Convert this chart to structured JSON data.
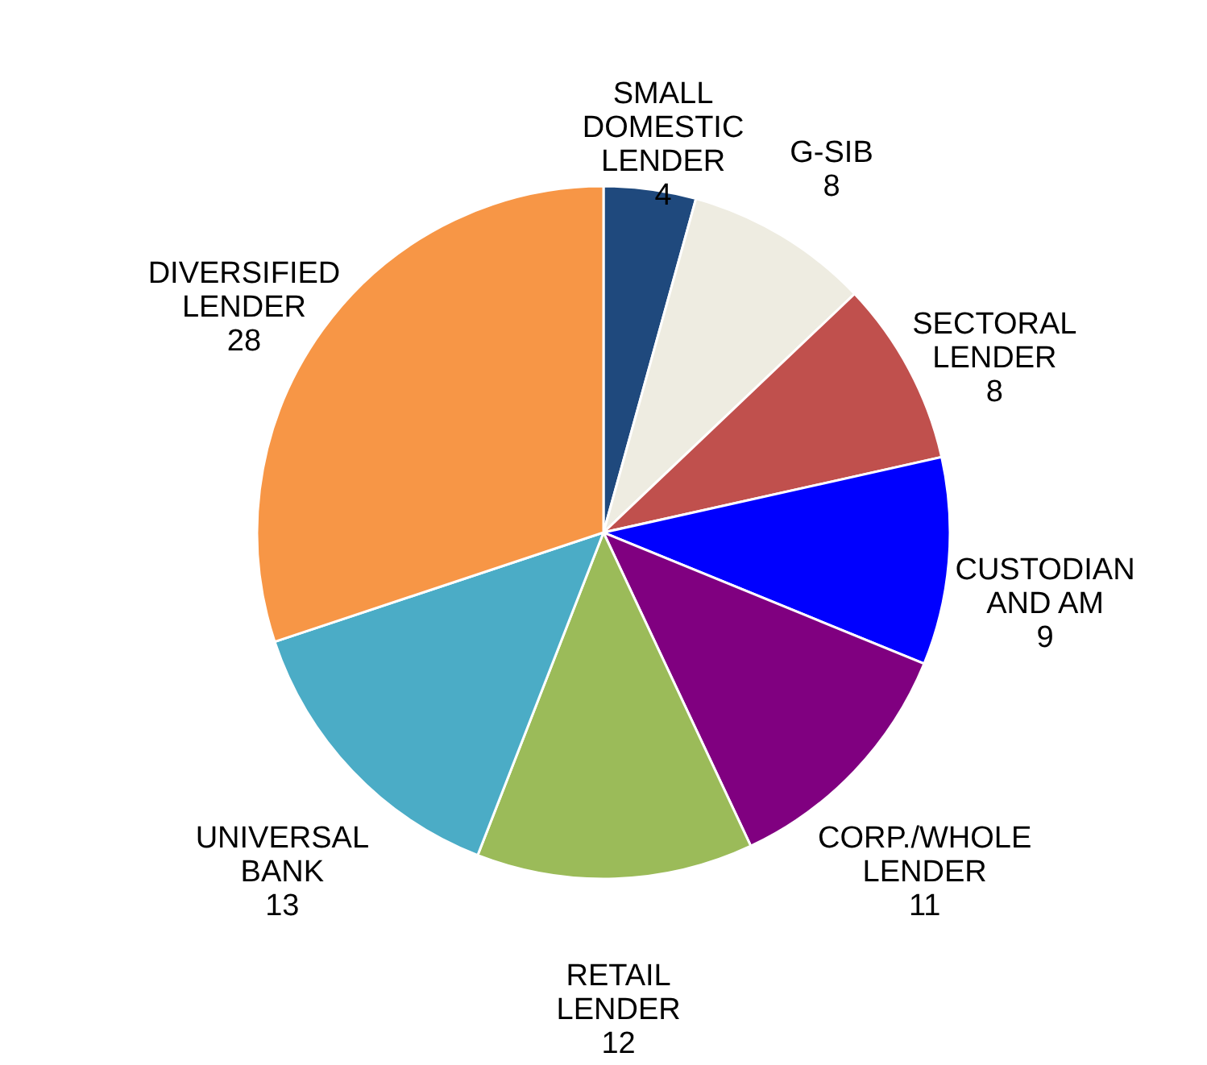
{
  "chart_data": {
    "type": "pie",
    "categories": [
      "SMALL\nDOMESTIC\nLENDER",
      "G-SIB",
      "SECTORAL\nLENDER",
      "CUSTODIAN\nAND AM",
      "CORP./WHOLE\nLENDER",
      "RETAIL\nLENDER",
      "UNIVERSAL\nBANK",
      "DIVERSIFIED\nLENDER"
    ],
    "values": [
      4,
      8,
      8,
      9,
      11,
      12,
      13,
      28
    ],
    "colors": [
      "#1f497d",
      "#eeece1",
      "#c0504d",
      "#0000ff",
      "#800080",
      "#9bbb59",
      "#4bacc6",
      "#f79646"
    ],
    "data_labels": true,
    "legend": false
  }
}
